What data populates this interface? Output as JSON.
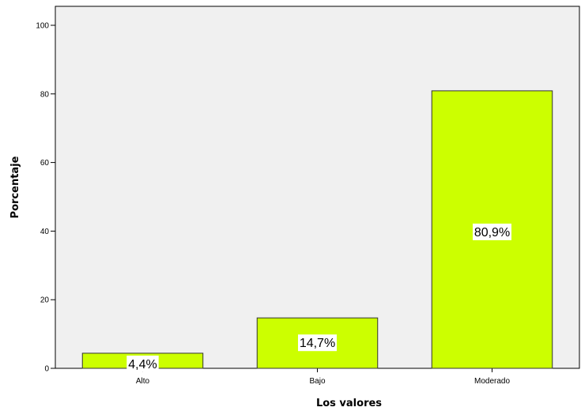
{
  "chart_data": {
    "type": "bar",
    "categories": [
      "Alto",
      "Bajo",
      "Moderado"
    ],
    "values": [
      4.4,
      14.7,
      80.9
    ],
    "data_labels": [
      "4,4%",
      "14,7%",
      "80,9%"
    ],
    "xlabel": "Los valores",
    "ylabel": "Porcentaje",
    "ylim": [
      0,
      100
    ],
    "yticks": [
      "0",
      "20",
      "40",
      "60",
      "80",
      "100"
    ],
    "grid": false,
    "colors": {
      "plot_background": "#f0f0f0",
      "bar_fill": "#ccff00",
      "bar_stroke": "#333333"
    }
  }
}
